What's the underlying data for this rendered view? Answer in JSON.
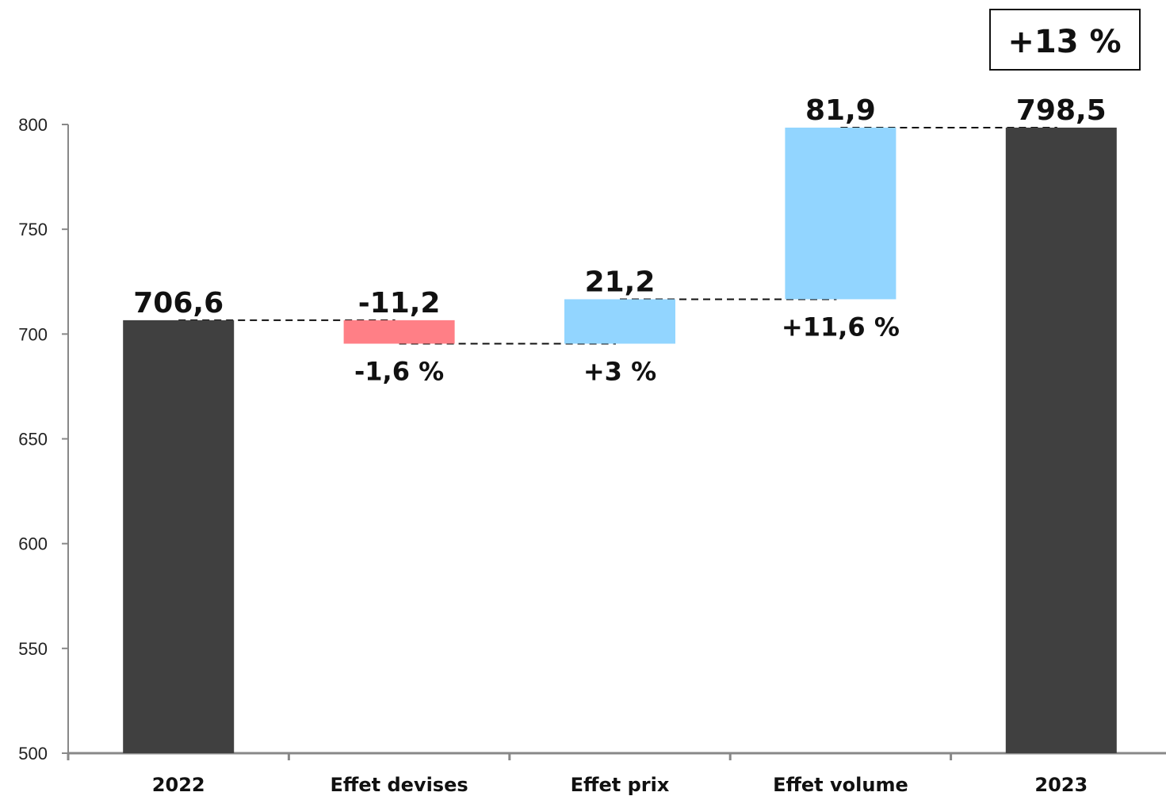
{
  "chart_data": {
    "type": "bar",
    "subtype": "waterfall",
    "categories": [
      "2022",
      "Effet devises",
      "Effet prix",
      "Effet volume",
      "2023"
    ],
    "values": [
      706.6,
      -11.2,
      21.2,
      81.9,
      798.5
    ],
    "value_labels": [
      "706,6",
      "-11,2",
      "21,2",
      "81,9",
      "798,5"
    ],
    "percent_labels": [
      "",
      "-1,6 %",
      "+3 %",
      "+11,6 %",
      ""
    ],
    "total_change_label": "+13 %",
    "ylim": [
      500,
      800
    ],
    "yticks": [
      500,
      550,
      600,
      650,
      700,
      750,
      800
    ],
    "grid": false,
    "legend": "none",
    "title": "",
    "xlabel": "",
    "ylabel": "",
    "colors": {
      "total": "#404040",
      "negative": "#ff7f86",
      "positive": "#92d5ff",
      "axis": "#888888",
      "text": "#111111"
    }
  }
}
